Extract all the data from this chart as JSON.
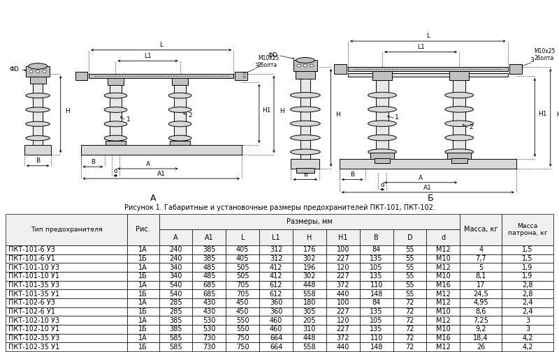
{
  "figure_caption": "Рисунок 1. Габаритные и установочные размеры предохранителей ПКТ-101, ПКТ-102.",
  "label_A": "А",
  "label_B": "Б",
  "table_title_col1": "Тип предохранителя",
  "table_title_col2": "Рис.",
  "table_group_header": "Размеры, мм",
  "table_col_headers": [
    "A",
    "A1",
    "L",
    "L1",
    "H",
    "H1",
    "B",
    "D",
    "d"
  ],
  "table_extra_headers": [
    "Масса, кг",
    "Масса\nпатрона, кг"
  ],
  "table_rows": [
    [
      "ПКТ-101-6 У3",
      "1А",
      "240",
      "385",
      "405",
      "312",
      "176",
      "100",
      "84",
      "55",
      "M12",
      "4",
      "1,5"
    ],
    [
      "ПКТ-101-6 У1",
      "1Б",
      "240",
      "385",
      "405",
      "312",
      "302",
      "227",
      "135",
      "55",
      "M10",
      "7,7",
      "1,5"
    ],
    [
      "ПКТ-101-10 У3",
      "1А",
      "340",
      "485",
      "505",
      "412",
      "196",
      "120",
      "105",
      "55",
      "M12",
      "5",
      "1,9"
    ],
    [
      "ПКТ-101-10 У1",
      "1Б",
      "340",
      "485",
      "505",
      "412",
      "302",
      "227",
      "135",
      "55",
      "M10",
      "8,1",
      "1,9"
    ],
    [
      "ПКТ-101-35 У3",
      "1А",
      "540",
      "685",
      "705",
      "612",
      "448",
      "372",
      "110",
      "55",
      "M16",
      "17",
      "2,8"
    ],
    [
      "ПКТ-101-35 У1",
      "1Б",
      "540",
      "685",
      "705",
      "612",
      "558",
      "440",
      "148",
      "55",
      "M12",
      "24,5",
      "2,8"
    ],
    [
      "ПКТ-102-6 У3",
      "1А",
      "285",
      "430",
      "450",
      "360",
      "180",
      "100",
      "84",
      "72",
      "M12",
      "4,95",
      "2,4"
    ],
    [
      "ПКТ-102-6 У1",
      "1Б",
      "285",
      "430",
      "450",
      "360",
      "305",
      "227",
      "135",
      "72",
      "M10",
      "8,6",
      "2,4"
    ],
    [
      "ПКТ-102-10 У3",
      "1А",
      "385",
      "530",
      "550",
      "460",
      "205",
      "120",
      "105",
      "72",
      "M12",
      "7,25",
      "3"
    ],
    [
      "ПКТ-102-10 У1",
      "1Б",
      "385",
      "530",
      "550",
      "460",
      "310",
      "227",
      "135",
      "72",
      "M10",
      "9,2",
      "3"
    ],
    [
      "ПКТ-102-35 У3",
      "1А",
      "585",
      "730",
      "750",
      "664",
      "448",
      "372",
      "110",
      "72",
      "M16",
      "18,4",
      "4,2"
    ],
    [
      "ПКТ-102-35 У1",
      "1Б",
      "585",
      "730",
      "750",
      "664",
      "558",
      "440",
      "148",
      "72",
      "M12",
      "26",
      "4,2"
    ]
  ],
  "bg_color": "#ffffff",
  "header_bg": "#f0f0f0",
  "line_color": "#000000",
  "font_size_table": 7.0,
  "font_size_caption": 7.0,
  "font_size_label": 9,
  "diagram_lw": 0.7,
  "gray_light": "#d8d8d8",
  "gray_mid": "#c0c0c0",
  "gray_dark": "#a0a0a0"
}
